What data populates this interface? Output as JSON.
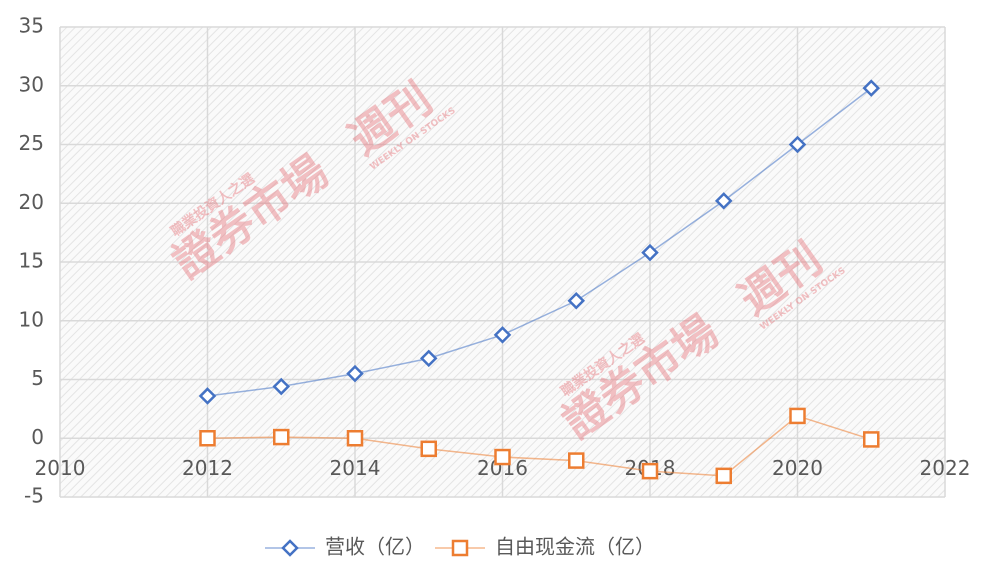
{
  "chart_data": {
    "type": "line",
    "x": [
      2012,
      2013,
      2014,
      2015,
      2016,
      2017,
      2018,
      2019,
      2020,
      2021
    ],
    "series": [
      {
        "name": "营收（亿）",
        "color": "#4472c4",
        "marker": "diamond",
        "values": [
          3.6,
          4.4,
          5.5,
          6.8,
          8.8,
          11.7,
          15.8,
          20.2,
          25.0,
          29.8
        ]
      },
      {
        "name": "自由现金流（亿）",
        "color": "#ed7d31",
        "marker": "square",
        "values": [
          0.0,
          0.1,
          0.0,
          -0.9,
          -1.6,
          -1.9,
          -2.8,
          -3.2,
          1.9,
          -0.1
        ]
      }
    ],
    "xlim": [
      2010,
      2022
    ],
    "xticks": [
      2010,
      2012,
      2014,
      2016,
      2018,
      2020,
      2022
    ],
    "ylim": [
      -5,
      35
    ],
    "yticks": [
      -5,
      0,
      5,
      10,
      15,
      20,
      25,
      30,
      35
    ],
    "grid": true,
    "legend": "bottom",
    "watermark": {
      "name": "證券市場",
      "brand": "週刊",
      "slogan": "職業投資人之選",
      "english": "WEEKLY ON STOCKS"
    }
  }
}
